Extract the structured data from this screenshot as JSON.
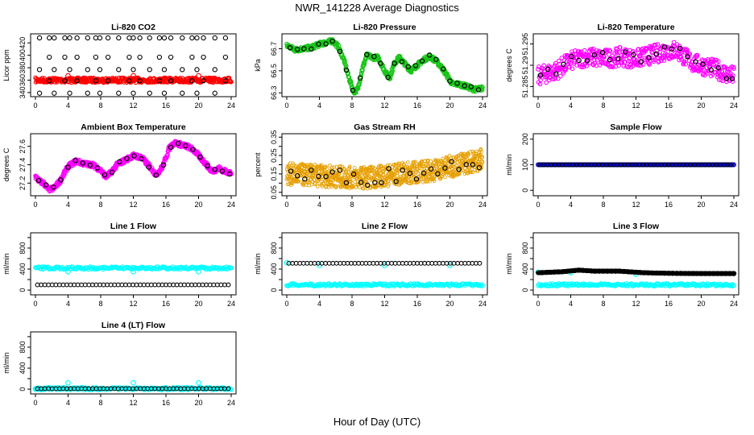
{
  "title": "NWR_141228  Average Diagnostics",
  "x_axis_title": "Hour of Day (UTC)",
  "colors": {
    "black": "#000000",
    "red": "#ff0000",
    "green": "#19c419",
    "magenta": "#ff00ff",
    "orange": "#e69f00",
    "blue": "#0000cd",
    "cyan": "#00ffff"
  },
  "chart_data": [
    {
      "type": "scatter",
      "title": "Li-820 CO2",
      "ylabel": "Licor ppm",
      "xlim": [
        0,
        24
      ],
      "ylim": [
        336,
        432
      ],
      "xticks": [
        0,
        4,
        8,
        12,
        16,
        20,
        24
      ],
      "yticks": [
        340,
        360,
        380,
        400,
        420
      ],
      "series": [
        {
          "color": "red",
          "kind": "band",
          "y": 360,
          "spread": 1.5
        },
        {
          "color": "red",
          "kind": "points",
          "x": [
            4.0,
            12.0,
            20.0
          ],
          "y": [
            367,
            367,
            367
          ]
        },
        {
          "color": "black",
          "kind": "levels",
          "levels": [
            428,
            397,
            377,
            359,
            339
          ],
          "x": [
            0.5,
            1.7,
            2.3,
            3.6,
            4.2,
            5.1,
            6.4,
            7.4,
            7.9,
            8.9,
            10.2,
            11.5,
            12.0,
            12.8,
            14.0,
            15.2,
            15.8,
            16.6,
            18.0,
            19.2,
            19.8,
            20.6,
            22.0,
            23.3
          ]
        }
      ]
    },
    {
      "type": "scatter",
      "title": "Li-820 Pressure",
      "ylabel": "kPa",
      "xlim": [
        0,
        24
      ],
      "ylim": [
        66.28,
        66.82
      ],
      "xticks": [
        0,
        4,
        8,
        12,
        16,
        20,
        24
      ],
      "yticks": [
        66.3,
        66.5,
        66.7
      ],
      "series": [
        {
          "color": "green",
          "kind": "trace",
          "spread": 0.02,
          "x": [
            0,
            1,
            2,
            3,
            4,
            5,
            5.6,
            6.3,
            7.0,
            7.6,
            8.2,
            8.7,
            9.2,
            9.8,
            10.5,
            11.2,
            12.0,
            12.6,
            13.2,
            13.8,
            14.5,
            15.2,
            16.0,
            16.8,
            17.5,
            18.3,
            19.0,
            19.7,
            20.3,
            21.0,
            22.0,
            23.0,
            24.0
          ],
          "y": [
            66.73,
            66.69,
            66.7,
            66.71,
            66.74,
            66.76,
            66.77,
            66.72,
            66.6,
            66.44,
            66.31,
            66.33,
            66.5,
            66.64,
            66.62,
            66.62,
            66.5,
            66.43,
            66.57,
            66.62,
            66.56,
            66.5,
            66.55,
            66.6,
            66.63,
            66.59,
            66.53,
            66.45,
            66.38,
            66.38,
            66.36,
            66.33,
            66.34
          ]
        },
        {
          "color": "black",
          "kind": "onTrace",
          "x": [
            0.4,
            1.3,
            2.1,
            3.0,
            3.9,
            4.8,
            5.6,
            6.5,
            7.3,
            8.1,
            9.0,
            9.8,
            10.7,
            11.5,
            12.4,
            13.2,
            14.1,
            14.9,
            15.8,
            16.6,
            17.5,
            18.3,
            19.2,
            20.0,
            20.9,
            21.8,
            22.6,
            23.5
          ]
        }
      ]
    },
    {
      "type": "scatter",
      "title": "Li-820 Temperature",
      "ylabel": "degrees C",
      "xlim": [
        0,
        24
      ],
      "ylim": [
        51.283,
        51.297
      ],
      "xticks": [
        0,
        4,
        8,
        12,
        16,
        20,
        24
      ],
      "yticks": [
        51.285,
        51.29,
        51.295
      ],
      "series": [
        {
          "color": "magenta",
          "kind": "scatterTrace",
          "spread": 0.0022,
          "x": [
            0,
            2,
            4,
            6,
            8,
            10,
            12,
            14,
            16,
            17,
            18,
            19,
            20,
            21,
            22,
            23,
            24
          ],
          "y": [
            51.2875,
            51.2885,
            51.291,
            51.292,
            51.2915,
            51.292,
            51.2915,
            51.2925,
            51.2935,
            51.2935,
            51.292,
            51.2905,
            51.29,
            51.2895,
            51.289,
            51.288,
            51.2875
          ]
        },
        {
          "color": "black",
          "kind": "onTrace",
          "x": [
            0.3,
            1.2,
            2.2,
            3.1,
            4.1,
            5.0,
            6.0,
            6.9,
            7.9,
            8.8,
            9.8,
            10.7,
            11.7,
            12.6,
            13.6,
            14.5,
            15.5,
            16.4,
            17.4,
            18.3,
            19.3,
            20.2,
            21.2,
            22.1,
            23.1,
            23.8
          ]
        }
      ]
    },
    {
      "type": "scatter",
      "title": "Ambient Box Temperature",
      "ylabel": "degrees C",
      "xlim": [
        0,
        24
      ],
      "ylim": [
        27.08,
        27.72
      ],
      "xticks": [
        0,
        4,
        8,
        12,
        16,
        20,
        24
      ],
      "yticks": [
        27.2,
        27.4,
        27.6
      ],
      "series": [
        {
          "color": "magenta",
          "kind": "trace",
          "spread": 0.025,
          "x": [
            0,
            0.5,
            1.0,
            1.6,
            2.2,
            3.0,
            4.0,
            5.0,
            6.0,
            7.0,
            8.0,
            8.6,
            9.2,
            10.0,
            11.0,
            12.0,
            13.0,
            14.0,
            14.8,
            15.6,
            16.4,
            17.0,
            17.8,
            18.6,
            19.4,
            20.0,
            20.8,
            21.6,
            22.5,
            23.2,
            24.0
          ],
          "y": [
            27.27,
            27.22,
            27.2,
            27.13,
            27.14,
            27.22,
            27.38,
            27.44,
            27.41,
            27.4,
            27.34,
            27.27,
            27.31,
            27.4,
            27.45,
            27.5,
            27.48,
            27.38,
            27.29,
            27.38,
            27.58,
            27.64,
            27.62,
            27.6,
            27.56,
            27.5,
            27.42,
            27.33,
            27.36,
            27.33,
            27.31
          ]
        },
        {
          "color": "black",
          "kind": "onTrace",
          "x": [
            0.4,
            1.3,
            2.2,
            3.1,
            4.0,
            4.9,
            5.8,
            6.7,
            7.6,
            8.5,
            9.4,
            10.3,
            11.2,
            12.1,
            13.0,
            13.9,
            14.8,
            15.7,
            16.6,
            17.5,
            18.4,
            19.3,
            20.2,
            21.1,
            22.0,
            22.9,
            23.8
          ]
        }
      ]
    },
    {
      "type": "scatter",
      "title": "Gas Stream RH",
      "ylabel": "percent",
      "xlim": [
        0,
        24
      ],
      "ylim": [
        0.04,
        0.36
      ],
      "xticks": [
        0,
        4,
        8,
        12,
        16,
        20,
        24
      ],
      "yticks": [
        0.05,
        0.1,
        0.15,
        0.2,
        0.25,
        0.3,
        0.35
      ],
      "ytick_labels": [
        "0.05",
        "",
        "0.15",
        "",
        "0.25",
        "",
        "0.35"
      ],
      "series": [
        {
          "color": "orange",
          "kind": "band",
          "spread": 0.06,
          "x": [
            0,
            4,
            8,
            10,
            12,
            14,
            16,
            18,
            20,
            22,
            24
          ],
          "y": [
            0.15,
            0.14,
            0.13,
            0.13,
            0.14,
            0.15,
            0.16,
            0.17,
            0.19,
            0.21,
            0.23
          ]
        },
        {
          "color": "black",
          "kind": "onTrace",
          "x": [
            0.5,
            1.3,
            2.2,
            3.0,
            3.9,
            4.8,
            5.6,
            6.5,
            7.3,
            8.2,
            9.1,
            9.9,
            10.8,
            11.6,
            12.5,
            13.4,
            14.2,
            15.1,
            15.9,
            16.8,
            17.7,
            18.5,
            19.4,
            20.2,
            21.1,
            22.0,
            22.8,
            23.6
          ]
        }
      ]
    },
    {
      "type": "scatter",
      "title": "Sample Flow",
      "ylabel": "ml/min",
      "xlim": [
        0,
        24
      ],
      "ylim": [
        -15,
        215
      ],
      "xticks": [
        0,
        4,
        8,
        12,
        16,
        20,
        24
      ],
      "yticks": [
        0,
        100,
        200
      ],
      "series": [
        {
          "color": "blue",
          "kind": "flat",
          "y": 100
        },
        {
          "color": "black",
          "kind": "flatPoints",
          "y": 100
        }
      ]
    },
    {
      "type": "scatter",
      "title": "Line 1 Flow",
      "ylabel": "ml/min",
      "xlim": [
        0,
        24
      ],
      "ylim": [
        -60,
        1060
      ],
      "xticks": [
        0,
        4,
        8,
        12,
        16,
        20,
        24
      ],
      "yticks": [
        0,
        200,
        400,
        600,
        800,
        1000
      ],
      "ytick_labels": [
        "0",
        "",
        "400",
        "",
        "800",
        ""
      ],
      "series": [
        {
          "color": "cyan",
          "kind": "flat",
          "y": 420,
          "thick": true
        },
        {
          "color": "cyan",
          "kind": "points",
          "x": [
            4.0,
            12.0,
            20.0
          ],
          "y": [
            350,
            350,
            350
          ]
        },
        {
          "color": "black",
          "kind": "flatPoints",
          "y": 100
        }
      ]
    },
    {
      "type": "scatter",
      "title": "Line 2 Flow",
      "ylabel": "ml/min",
      "xlim": [
        0,
        24
      ],
      "ylim": [
        -60,
        1060
      ],
      "xticks": [
        0,
        4,
        8,
        12,
        16,
        20,
        24
      ],
      "yticks": [
        0,
        200,
        400,
        600,
        800,
        1000
      ],
      "ytick_labels": [
        "0",
        "",
        "400",
        "",
        "800",
        ""
      ],
      "series": [
        {
          "color": "cyan",
          "kind": "flat",
          "y": 100,
          "thick": true
        },
        {
          "color": "cyan",
          "kind": "points",
          "x": [
            0.0,
            4.0,
            12.0,
            20.0
          ],
          "y": [
            520,
            470,
            470,
            470
          ]
        },
        {
          "color": "black",
          "kind": "flatPoints",
          "y": 510
        }
      ]
    },
    {
      "type": "scatter",
      "title": "Line 3 Flow",
      "ylabel": "ml/min",
      "xlim": [
        0,
        24
      ],
      "ylim": [
        -60,
        1060
      ],
      "xticks": [
        0,
        4,
        8,
        12,
        16,
        20,
        24
      ],
      "yticks": [
        0,
        200,
        400,
        600,
        800,
        1000
      ],
      "ytick_labels": [
        "0",
        "",
        "400",
        "",
        "800",
        ""
      ],
      "series": [
        {
          "color": "cyan",
          "kind": "flat",
          "y": 100,
          "thick": true
        },
        {
          "color": "cyan",
          "kind": "points",
          "x": [
            0.0,
            4.0,
            12.0
          ],
          "y": [
            340,
            330,
            300
          ]
        },
        {
          "color": "black",
          "kind": "trace",
          "spread": 0,
          "x": [
            0,
            3,
            5,
            7,
            10,
            13,
            16,
            20,
            24
          ],
          "y": [
            330,
            350,
            380,
            360,
            360,
            330,
            320,
            315,
            315
          ]
        },
        {
          "color": "black",
          "kind": "onTrace",
          "x": [
            0.5,
            1.0,
            1.5,
            2.0,
            2.5,
            3.0,
            3.5,
            4.0,
            4.5,
            5.0,
            5.5,
            6.0,
            6.5,
            7.0,
            7.5,
            8.0,
            8.5,
            9.0,
            9.5,
            10.0,
            10.5,
            11.0,
            11.5,
            12.0,
            12.5,
            13.0,
            13.5,
            14.0,
            14.5,
            15.0,
            15.5,
            16.0,
            16.5,
            17.0,
            17.5,
            18.0,
            18.5,
            19.0,
            19.5,
            20.0,
            20.5,
            21.0,
            21.5,
            22.0,
            22.5,
            23.0,
            23.5,
            24.0
          ]
        }
      ]
    },
    {
      "type": "scatter",
      "title": "Line 4 (LT) Flow",
      "ylabel": "ml/min",
      "xlim": [
        0,
        24
      ],
      "ylim": [
        -60,
        1060
      ],
      "xticks": [
        0,
        4,
        8,
        12,
        16,
        20,
        24
      ],
      "yticks": [
        0,
        200,
        400,
        600,
        800,
        1000
      ],
      "ytick_labels": [
        "0",
        "",
        "400",
        "",
        "800",
        ""
      ],
      "series": [
        {
          "color": "cyan",
          "kind": "flat",
          "y": 10,
          "thick": true
        },
        {
          "color": "cyan",
          "kind": "points",
          "x": [
            0.0,
            4.0,
            12.0,
            20.0
          ],
          "y": [
            10,
            120,
            120,
            120
          ]
        },
        {
          "color": "black",
          "kind": "flatPoints",
          "y": 10
        }
      ]
    }
  ]
}
